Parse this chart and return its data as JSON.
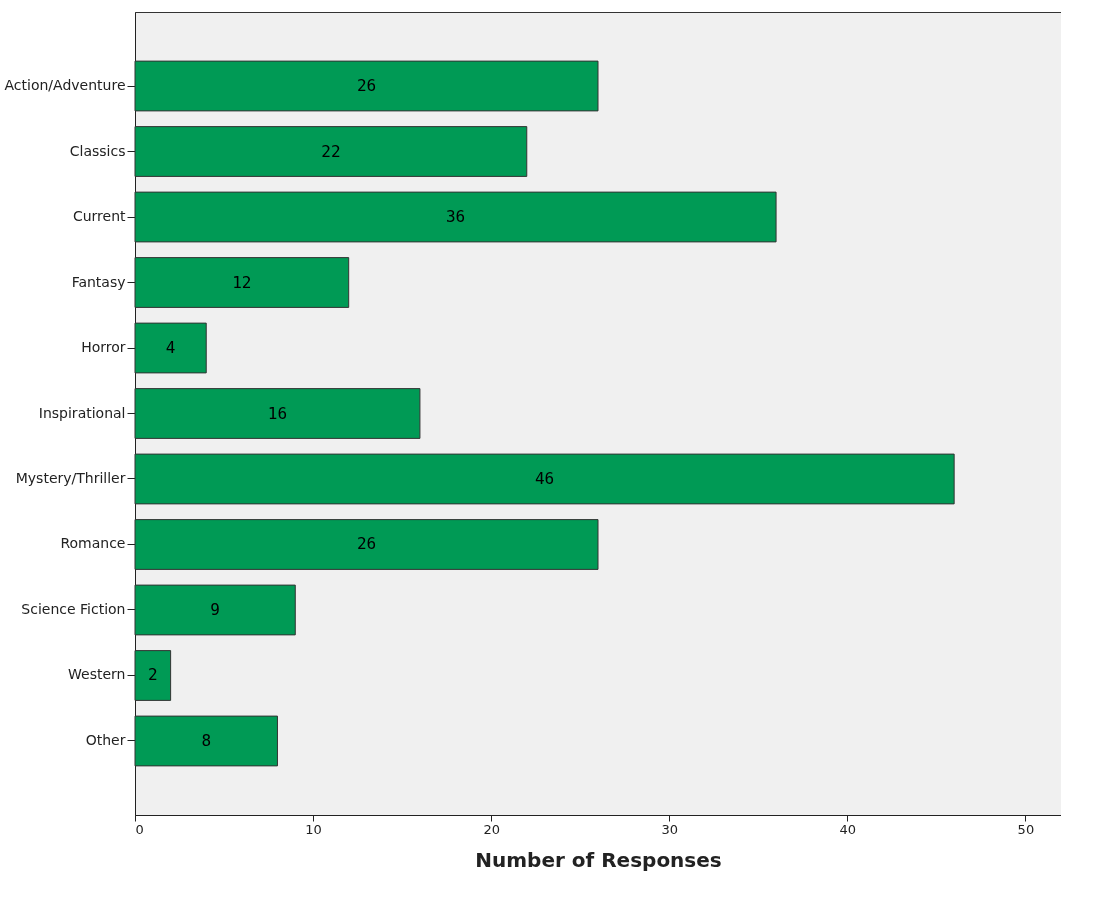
{
  "chart_data": {
    "type": "bar",
    "orientation": "horizontal",
    "xlabel": "Number of Responses",
    "categories": [
      "Action/Adventure",
      "Classics",
      "Current",
      "Fantasy",
      "Horror",
      "Inspirational",
      "Mystery/Thriller",
      "Romance",
      "Science Fiction",
      "Western",
      "Other"
    ],
    "values": [
      26,
      22,
      36,
      12,
      4,
      16,
      46,
      26,
      9,
      2,
      8
    ],
    "color": "#009a55",
    "xlim": [
      0,
      52
    ],
    "xticks": [
      0,
      10,
      20,
      30,
      40,
      50
    ],
    "grid": false,
    "data_labels": true
  }
}
